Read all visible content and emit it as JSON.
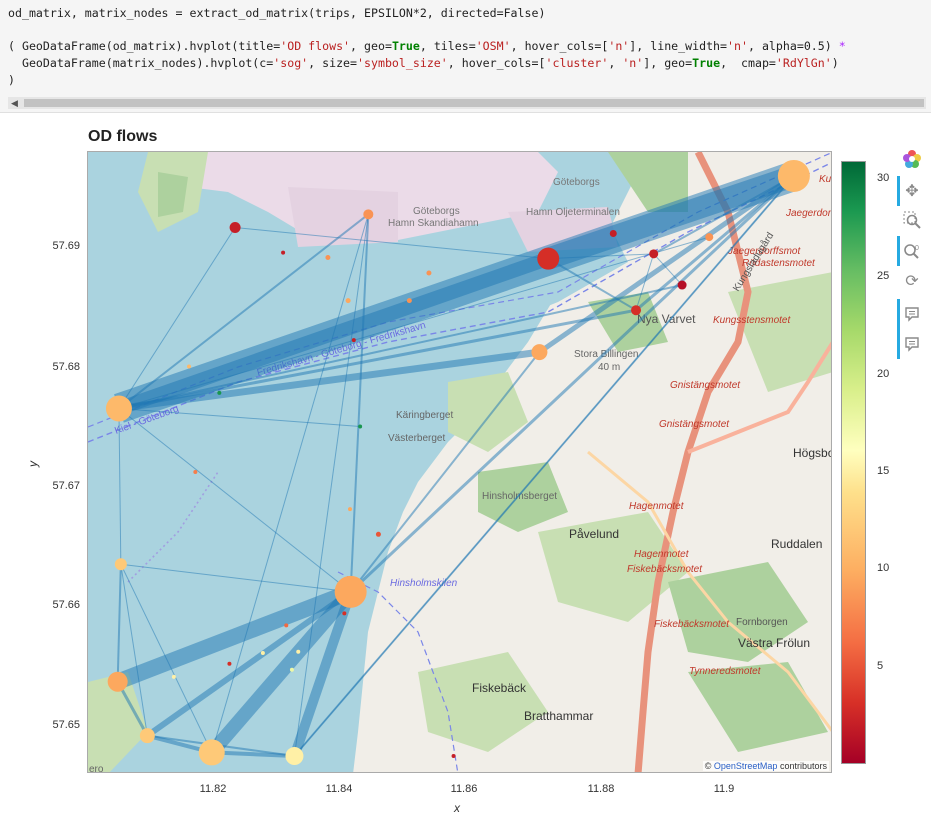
{
  "code": {
    "line1": "od_matrix, matrix_nodes = extract_od_matrix(trips, EPSILON*2, directed=False)",
    "line2_a": "( GeoDataFrame(od_matrix).hvplot(title=",
    "line2_b": "'OD flows'",
    "line2_c": ", geo=",
    "line2_d": "True",
    "line2_e": ", tiles=",
    "line2_f": "'OSM'",
    "line2_g": ", hover_cols=[",
    "line2_h": "'n'",
    "line2_i": "], line_width=",
    "line2_j": "'n'",
    "line2_k": ", alpha=0.5) ",
    "line2_l": "*",
    "line3_a": "  GeoDataFrame(matrix_nodes).hvplot(c=",
    "line3_b": "'sog'",
    "line3_c": ", size=",
    "line3_d": "'symbol_size'",
    "line3_e": ", hover_cols=[",
    "line3_f": "'cluster'",
    "line3_g": ", ",
    "line3_h": "'n'",
    "line3_i": "], geo=",
    "line3_j": "True",
    "line3_k": ",  cmap=",
    "line3_l": "'RdYlGn'",
    "line3_m": ")",
    "line4": ")"
  },
  "plot": {
    "title": "OD flows",
    "xlabel": "x",
    "ylabel": "y",
    "attribution_prefix": "©",
    "attribution_link": "OpenStreetMap",
    "attribution_suffix": "contributors",
    "partial_label": "ero"
  },
  "map_labels": {
    "goteborg_skandia_1": "Göteborgs",
    "goteborg_skandia_2": "Hamn Skandiahamn",
    "goteborg_olje_1": "Göteborgs",
    "goteborg_olje_2": "Hamn Oljeterminalen",
    "nya_varvet": "Nya Varvet",
    "stora_billingen": "Stora Billingen",
    "stora_billingen_h": "40 m",
    "karingberget": "Käringberget",
    "vasterberget": "Västerberget",
    "hinsholmsberget": "Hinsholmsberget",
    "pavelund": "Påvelund",
    "ruddalen": "Ruddalen",
    "hogsbo": "Högsbo",
    "fiskeback": "Fiskebäck",
    "bratthammar": "Bratthammar",
    "fornborgen": "Fornborgen",
    "vastra_frolunda": "Västra Frölun",
    "kungsstensmotet": "Kungsstensmotet",
    "gnistangsmotet_1": "Gnistängsmotet",
    "gnistangsmotet_2": "Gnistängsmotet",
    "hagenmotet_1": "Hagenmotet",
    "hagenmotet_2": "Hagenmotet",
    "fiskebacksmotet_1": "Fiskebäcksmotet",
    "fiskebacksmotet_2": "Fiskebäcksmotet",
    "tynneredsmotet": "Tynneredsmotet",
    "jaegerdorffsmot": "Jaegerdorffsmot",
    "rodastensmotet": "Rödastensmotet",
    "jaegerdorf": "Jaegerdorf",
    "fredrikshavn_route": "Fredrikshavn - Göteborg - Fredrikshavn",
    "kiel_route": "Kiel - Göteborg",
    "hinsholmskilen": "Hinsholmskilen",
    "kungsladugard": "Kungsladugård",
    "kul": "Ku"
  },
  "chart_data": {
    "type": "scatter",
    "title": "OD flows",
    "xlabel": "x",
    "ylabel": "y",
    "xlim": [
      11.8,
      11.918
    ],
    "ylim": [
      57.6466,
      57.6985
    ],
    "x_ticks": [
      "11.82",
      "11.84",
      "11.86",
      "11.88",
      "11.9"
    ],
    "x_tick_values": [
      11.82,
      11.84,
      11.86,
      11.88,
      11.9
    ],
    "y_ticks": [
      "57.65",
      "57.66",
      "57.67",
      "57.68",
      "57.69"
    ],
    "y_tick_values": [
      57.65,
      57.66,
      57.67,
      57.68,
      57.69
    ],
    "colorbar": {
      "cmap": "RdYlGn",
      "range": [
        0,
        31
      ],
      "ticks": [
        "5",
        "10",
        "15",
        "20",
        "25",
        "30"
      ],
      "tick_values": [
        5,
        10,
        15,
        20,
        25,
        30
      ]
    },
    "nodes": [
      {
        "x": 11.9118,
        "y": 57.6965,
        "sog": 10,
        "size": 32
      },
      {
        "x": 11.8049,
        "y": 57.6771,
        "sog": 10,
        "size": 26
      },
      {
        "x": 11.8416,
        "y": 57.6618,
        "sog": 9,
        "size": 32
      },
      {
        "x": 11.8729,
        "y": 57.6896,
        "sog": 3,
        "size": 22
      },
      {
        "x": 11.8196,
        "y": 57.6484,
        "sog": 11,
        "size": 26
      },
      {
        "x": 11.8047,
        "y": 57.6543,
        "sog": 9,
        "size": 20
      },
      {
        "x": 11.8327,
        "y": 57.6481,
        "sog": 14,
        "size": 18
      },
      {
        "x": 11.8715,
        "y": 57.6818,
        "sog": 9,
        "size": 16
      },
      {
        "x": 11.8094,
        "y": 57.6498,
        "sog": 11,
        "size": 15
      },
      {
        "x": 11.8052,
        "y": 57.6641,
        "sog": 11,
        "size": 12
      },
      {
        "x": 11.8444,
        "y": 57.6933,
        "sog": 8,
        "size": 10
      },
      {
        "x": 11.8233,
        "y": 57.6922,
        "sog": 2,
        "size": 11
      },
      {
        "x": 11.8868,
        "y": 57.6853,
        "sog": 3,
        "size": 10
      },
      {
        "x": 11.8896,
        "y": 57.69,
        "sog": 2,
        "size": 9
      },
      {
        "x": 11.8941,
        "y": 57.6874,
        "sog": 1,
        "size": 9
      },
      {
        "x": 11.8832,
        "y": 57.6917,
        "sog": 2,
        "size": 7
      },
      {
        "x": 11.8984,
        "y": 57.6914,
        "sog": 8,
        "size": 8
      },
      {
        "x": 11.8309,
        "y": 57.6901,
        "sog": 2,
        "size": 4
      },
      {
        "x": 11.838,
        "y": 57.6897,
        "sog": 8,
        "size": 5
      },
      {
        "x": 11.854,
        "y": 57.6884,
        "sog": 8,
        "size": 5
      },
      {
        "x": 11.8509,
        "y": 57.6861,
        "sog": 8,
        "size": 5
      },
      {
        "x": 11.8412,
        "y": 57.6861,
        "sog": 9,
        "size": 5
      },
      {
        "x": 11.8421,
        "y": 57.6828,
        "sog": 2,
        "size": 4
      },
      {
        "x": 11.816,
        "y": 57.6806,
        "sog": 10,
        "size": 4
      },
      {
        "x": 11.8208,
        "y": 57.6784,
        "sog": 28,
        "size": 4
      },
      {
        "x": 11.8431,
        "y": 57.6756,
        "sog": 28,
        "size": 4
      },
      {
        "x": 11.817,
        "y": 57.6718,
        "sog": 7,
        "size": 4
      },
      {
        "x": 11.8415,
        "y": 57.6687,
        "sog": 9,
        "size": 4
      },
      {
        "x": 11.846,
        "y": 57.6666,
        "sog": 5,
        "size": 5
      },
      {
        "x": 11.8314,
        "y": 57.659,
        "sog": 6,
        "size": 4
      },
      {
        "x": 11.8277,
        "y": 57.6567,
        "sog": 14,
        "size": 4
      },
      {
        "x": 11.8333,
        "y": 57.6568,
        "sog": 14,
        "size": 4
      },
      {
        "x": 11.8323,
        "y": 57.6553,
        "sog": 17,
        "size": 4
      },
      {
        "x": 11.8224,
        "y": 57.6558,
        "sog": 3,
        "size": 4
      },
      {
        "x": 11.8136,
        "y": 57.6547,
        "sog": 14,
        "size": 4
      },
      {
        "x": 11.8406,
        "y": 57.66,
        "sog": 3,
        "size": 4
      },
      {
        "x": 11.8579,
        "y": 57.6481,
        "sog": 2,
        "size": 4
      }
    ],
    "flows": [
      {
        "from": 0,
        "to": 1,
        "n": 30
      },
      {
        "from": 0,
        "to": 3,
        "n": 22
      },
      {
        "from": 3,
        "to": 1,
        "n": 14
      },
      {
        "from": 1,
        "to": 7,
        "n": 7
      },
      {
        "from": 0,
        "to": 7,
        "n": 5
      },
      {
        "from": 0,
        "to": 2,
        "n": 3
      },
      {
        "from": 0,
        "to": 12,
        "n": 3
      },
      {
        "from": 0,
        "to": 13,
        "n": 2
      },
      {
        "from": 0,
        "to": 6,
        "n": 2
      },
      {
        "from": 1,
        "to": 12,
        "n": 3
      },
      {
        "from": 1,
        "to": 14,
        "n": 2
      },
      {
        "from": 1,
        "to": 10,
        "n": 2
      },
      {
        "from": 1,
        "to": 11,
        "n": 1
      },
      {
        "from": 1,
        "to": 2,
        "n": 1
      },
      {
        "from": 1,
        "to": 16,
        "n": 1
      },
      {
        "from": 2,
        "to": 5,
        "n": 16
      },
      {
        "from": 2,
        "to": 4,
        "n": 14
      },
      {
        "from": 2,
        "to": 6,
        "n": 10
      },
      {
        "from": 2,
        "to": 8,
        "n": 6
      },
      {
        "from": 2,
        "to": 10,
        "n": 2
      },
      {
        "from": 2,
        "to": 7,
        "n": 2
      },
      {
        "from": 2,
        "to": 9,
        "n": 1
      },
      {
        "from": 3,
        "to": 11,
        "n": 1
      },
      {
        "from": 3,
        "to": 12,
        "n": 2
      },
      {
        "from": 3,
        "to": 13,
        "n": 1
      },
      {
        "from": 12,
        "to": 13,
        "n": 1
      },
      {
        "from": 13,
        "to": 14,
        "n": 1
      },
      {
        "from": 4,
        "to": 8,
        "n": 4
      },
      {
        "from": 4,
        "to": 6,
        "n": 4
      },
      {
        "from": 5,
        "to": 8,
        "n": 3
      },
      {
        "from": 5,
        "to": 9,
        "n": 2
      },
      {
        "from": 9,
        "to": 4,
        "n": 1
      },
      {
        "from": 9,
        "to": 8,
        "n": 1
      },
      {
        "from": 1,
        "to": 9,
        "n": 1
      },
      {
        "from": 1,
        "to": 25,
        "n": 1
      },
      {
        "from": 8,
        "to": 6,
        "n": 2
      },
      {
        "from": 4,
        "to": 10,
        "n": 1
      },
      {
        "from": 6,
        "to": 10,
        "n": 1
      },
      {
        "from": 6,
        "to": 0,
        "n": 1
      }
    ]
  }
}
